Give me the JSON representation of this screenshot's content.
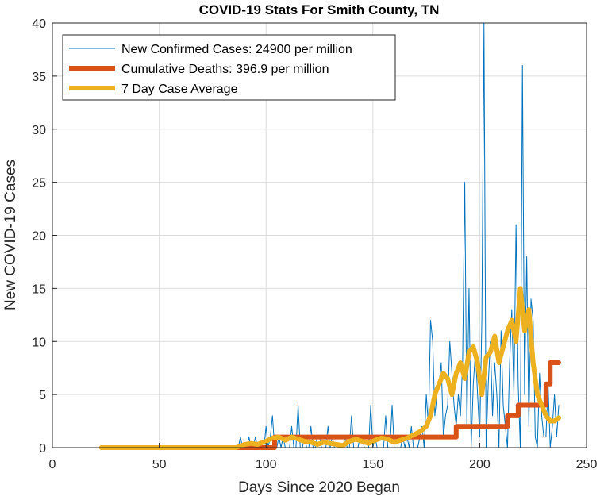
{
  "chart_data": {
    "type": "line",
    "title": "COVID-19 Stats For Smith County, TN",
    "xlabel": "Days Since 2020 Began",
    "ylabel": "New COVID-19 Cases",
    "xlim": [
      0,
      250
    ],
    "ylim": [
      0,
      40
    ],
    "xticks": [
      0,
      50,
      100,
      150,
      200,
      250
    ],
    "yticks": [
      0,
      5,
      10,
      15,
      20,
      25,
      30,
      35,
      40
    ],
    "grid": true,
    "legend_position": "top-left",
    "series": [
      {
        "name": "New Confirmed Cases: 24900 per million",
        "color": "#0072BD",
        "x": [
          23,
          30,
          40,
          50,
          60,
          70,
          80,
          85,
          87,
          88,
          89,
          90,
          91,
          92,
          93,
          94,
          95,
          96,
          97,
          98,
          99,
          100,
          101,
          102,
          103,
          104,
          105,
          106,
          107,
          108,
          109,
          110,
          111,
          112,
          113,
          114,
          115,
          116,
          117,
          118,
          119,
          120,
          121,
          122,
          123,
          124,
          125,
          126,
          127,
          128,
          129,
          130,
          131,
          132,
          133,
          134,
          135,
          136,
          137,
          138,
          139,
          140,
          141,
          142,
          143,
          144,
          145,
          146,
          147,
          148,
          149,
          150,
          151,
          152,
          153,
          154,
          155,
          156,
          157,
          158,
          159,
          160,
          161,
          162,
          163,
          164,
          165,
          166,
          167,
          168,
          169,
          170,
          171,
          172,
          173,
          174,
          175,
          176,
          177,
          178,
          179,
          180,
          181,
          182,
          183,
          184,
          185,
          186,
          187,
          188,
          189,
          190,
          191,
          192,
          193,
          194,
          195,
          196,
          197,
          198,
          199,
          200,
          201,
          202,
          203,
          204,
          205,
          206,
          207,
          208,
          209,
          210,
          211,
          212,
          213,
          214,
          215,
          216,
          217,
          218,
          219,
          220,
          221,
          222,
          223,
          224,
          225,
          226,
          227,
          228,
          229,
          230,
          231,
          232,
          233,
          234,
          235,
          236,
          237
        ],
        "values": [
          0,
          0,
          0,
          0,
          0,
          0,
          0,
          0,
          0,
          1,
          0,
          0,
          0,
          1,
          0,
          0,
          1,
          0,
          0,
          0,
          0,
          2,
          0,
          1,
          3,
          0,
          0,
          1,
          0,
          1,
          0,
          0,
          0,
          2,
          0,
          0,
          4,
          0,
          0,
          1,
          0,
          0,
          2,
          0,
          0,
          1,
          1,
          0,
          0,
          0,
          2,
          0,
          1,
          0,
          0,
          0,
          0,
          0,
          1,
          0,
          0,
          3,
          0,
          0,
          0,
          1,
          1,
          0,
          0,
          0,
          4,
          0,
          1,
          0,
          0,
          0,
          0,
          3,
          0,
          0,
          4,
          0,
          0,
          0,
          0,
          1,
          0,
          1,
          0,
          2,
          0,
          0,
          0,
          1,
          2,
          0,
          5,
          2,
          12,
          10,
          3,
          5,
          6,
          8,
          1,
          3,
          4,
          10,
          7,
          4,
          2,
          5,
          3,
          8,
          25,
          2,
          15,
          0,
          6,
          9,
          5,
          1,
          12,
          40,
          0,
          6,
          10,
          3,
          8,
          5,
          0,
          11,
          4,
          2,
          0,
          8,
          13,
          5,
          21,
          6,
          0,
          36,
          5,
          18,
          2,
          14,
          12,
          1,
          0,
          7,
          3,
          1,
          1,
          6,
          0,
          2,
          5,
          1,
          4
        ]
      },
      {
        "name": "Cumulative Deaths: 396.9 per million",
        "color": "#D95319",
        "x": [
          23,
          104,
          104,
          189,
          189,
          213,
          213,
          218,
          218,
          231,
          231,
          233,
          233,
          237
        ],
        "values": [
          0,
          0,
          1,
          1,
          2,
          2,
          3,
          3,
          4,
          4,
          6,
          6,
          8,
          8
        ]
      },
      {
        "name": "7 Day Case Average",
        "color": "#EDB120",
        "x": [
          23,
          86,
          90,
          93,
          96,
          100,
          103,
          106,
          109,
          112,
          115,
          118,
          121,
          124,
          127,
          130,
          133,
          136,
          139,
          142,
          145,
          148,
          151,
          154,
          157,
          160,
          163,
          166,
          169,
          172,
          175,
          177,
          179,
          181,
          183,
          185,
          187,
          189,
          191,
          193,
          195,
          197,
          199,
          201,
          203,
          205,
          207,
          209,
          211,
          213,
          215,
          217,
          219,
          221,
          223,
          225,
          227,
          229,
          231,
          233,
          235,
          237
        ],
        "values": [
          0,
          0,
          0.3,
          0.4,
          0.3,
          0.6,
          0.9,
          1,
          0.7,
          1,
          0.8,
          0.6,
          0.5,
          0.3,
          0.5,
          0.4,
          0.3,
          0.2,
          0.6,
          0.8,
          0.6,
          0.4,
          0.7,
          0.9,
          0.8,
          0.5,
          0.7,
          0.9,
          1.2,
          1.5,
          2,
          3,
          5,
          6,
          7,
          6.5,
          5,
          7,
          8,
          6.5,
          9,
          9.5,
          8,
          5,
          8.5,
          9,
          10.5,
          8,
          9.5,
          11,
          12,
          10,
          15,
          11,
          13,
          8,
          5,
          4,
          3,
          2.5,
          2.5,
          2.8
        ]
      }
    ]
  }
}
